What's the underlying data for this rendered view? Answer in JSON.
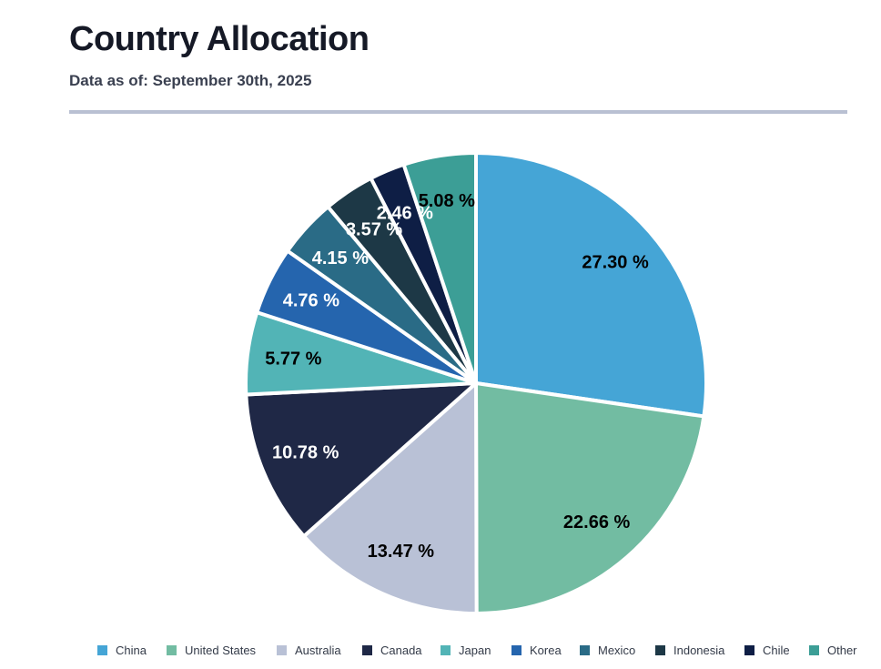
{
  "header": {
    "title": "Country Allocation",
    "subtitle": "Data as of: September 30th, 2025"
  },
  "chart_data": {
    "type": "pie",
    "title": "Country Allocation",
    "subtitle": "Data as of: September 30th, 2025",
    "unit": "%",
    "start_angle": "12 o'clock",
    "direction": "clockwise",
    "legend_position": "bottom",
    "slices": [
      {
        "label": "China",
        "value": 27.3,
        "display": "27.30 %",
        "color": "#45A5D6",
        "label_color": "#000000"
      },
      {
        "label": "United States",
        "value": 22.66,
        "display": "22.66 %",
        "color": "#72BCA2",
        "label_color": "#000000"
      },
      {
        "label": "Australia",
        "value": 13.47,
        "display": "13.47 %",
        "color": "#B9C1D6",
        "label_color": "#000000"
      },
      {
        "label": "Canada",
        "value": 10.78,
        "display": "10.78 %",
        "color": "#1F2846",
        "label_color": "#FFFFFF"
      },
      {
        "label": "Japan",
        "value": 5.77,
        "display": "5.77 %",
        "color": "#52B4B6",
        "label_color": "#000000"
      },
      {
        "label": "Korea",
        "value": 4.76,
        "display": "4.76 %",
        "color": "#2565AE",
        "label_color": "#FFFFFF"
      },
      {
        "label": "Mexico",
        "value": 4.15,
        "display": "4.15 %",
        "color": "#2A6B86",
        "label_color": "#FFFFFF"
      },
      {
        "label": "Indonesia",
        "value": 3.57,
        "display": "3.57 %",
        "color": "#1D3846",
        "label_color": "#FFFFFF"
      },
      {
        "label": "Chile",
        "value": 2.46,
        "display": "2.46 %",
        "color": "#0E1E45",
        "label_color": "#FFFFFF"
      },
      {
        "label": "Other",
        "value": 5.08,
        "display": "5.08 %",
        "color": "#3C9E96",
        "label_color": "#000000"
      }
    ]
  }
}
